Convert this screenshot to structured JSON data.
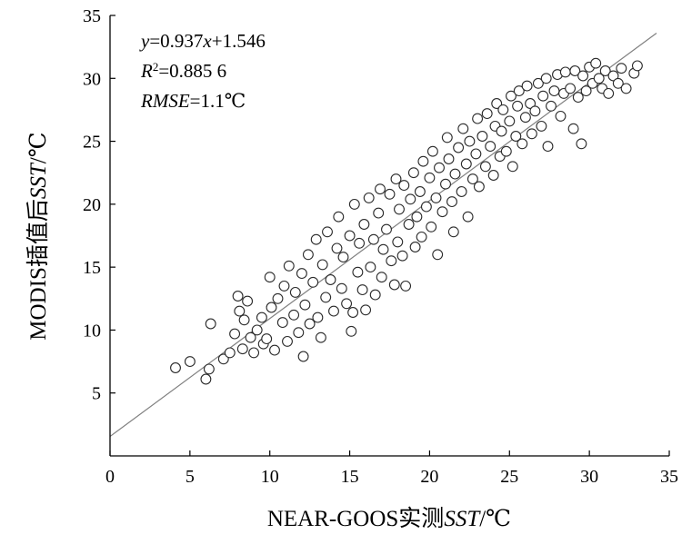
{
  "chart_data": {
    "type": "scatter",
    "title": "",
    "xlabel_parts": [
      {
        "text": "NEAR-GOOS实测",
        "italic": false
      },
      {
        "text": "SST",
        "italic": true
      },
      {
        "text": "/℃",
        "italic": false
      }
    ],
    "ylabel_parts": [
      {
        "text": "MODIS插值后",
        "italic": false
      },
      {
        "text": "SST",
        "italic": true
      },
      {
        "text": "/℃",
        "italic": false
      }
    ],
    "xlim": [
      0,
      35
    ],
    "ylim": [
      0,
      35
    ],
    "xticks": [
      0,
      5,
      10,
      15,
      20,
      25,
      30,
      35
    ],
    "yticks": [
      5,
      10,
      15,
      20,
      25,
      30,
      35
    ],
    "grid": false,
    "legend": "none",
    "colors": {
      "marker_edge": "#2b2b2b",
      "marker_fill": "#ffffff",
      "fit_line": "#808080",
      "axis": "#000000"
    },
    "annotations": [
      [
        {
          "text": "y",
          "italic": true
        },
        {
          "text": "=0.937",
          "italic": false
        },
        {
          "text": "x",
          "italic": true
        },
        {
          "text": "+1.546",
          "italic": false
        }
      ],
      [
        {
          "text": "R",
          "italic": true
        },
        {
          "text": "2",
          "italic": false,
          "superscript": true
        },
        {
          "text": "=0.885 6",
          "italic": false
        }
      ],
      [
        {
          "text": "RMSE",
          "italic": true
        },
        {
          "text": "=1.1℃",
          "italic": false
        }
      ]
    ],
    "fit_line": {
      "slope": 0.937,
      "intercept": 1.546,
      "x_range": [
        0,
        34.2
      ]
    },
    "series": [
      {
        "marker": "open-circle",
        "points": [
          [
            4.1,
            7.0
          ],
          [
            5.0,
            7.5
          ],
          [
            6.0,
            6.1
          ],
          [
            6.2,
            6.9
          ],
          [
            6.3,
            10.5
          ],
          [
            7.1,
            7.7
          ],
          [
            7.5,
            8.2
          ],
          [
            7.8,
            9.7
          ],
          [
            8.0,
            12.7
          ],
          [
            8.1,
            11.5
          ],
          [
            8.3,
            8.5
          ],
          [
            8.4,
            10.8
          ],
          [
            8.6,
            12.3
          ],
          [
            8.8,
            9.4
          ],
          [
            9.0,
            8.2
          ],
          [
            9.2,
            10.0
          ],
          [
            9.5,
            11.0
          ],
          [
            9.6,
            8.9
          ],
          [
            9.8,
            9.3
          ],
          [
            10.0,
            14.2
          ],
          [
            10.1,
            11.8
          ],
          [
            10.3,
            8.4
          ],
          [
            10.5,
            12.5
          ],
          [
            10.8,
            10.6
          ],
          [
            10.9,
            13.5
          ],
          [
            11.1,
            9.1
          ],
          [
            11.2,
            15.1
          ],
          [
            11.5,
            11.2
          ],
          [
            11.6,
            13.0
          ],
          [
            11.8,
            9.8
          ],
          [
            12.0,
            14.5
          ],
          [
            12.1,
            7.9
          ],
          [
            12.2,
            12.0
          ],
          [
            12.4,
            16.0
          ],
          [
            12.5,
            10.5
          ],
          [
            12.7,
            13.8
          ],
          [
            12.9,
            17.2
          ],
          [
            13.0,
            11.0
          ],
          [
            13.2,
            9.4
          ],
          [
            13.3,
            15.2
          ],
          [
            13.5,
            12.6
          ],
          [
            13.6,
            17.8
          ],
          [
            13.8,
            14.0
          ],
          [
            14.0,
            11.5
          ],
          [
            14.2,
            16.5
          ],
          [
            14.3,
            19.0
          ],
          [
            14.5,
            13.3
          ],
          [
            14.6,
            15.8
          ],
          [
            14.8,
            12.1
          ],
          [
            15.0,
            17.5
          ],
          [
            15.1,
            9.9
          ],
          [
            15.2,
            11.4
          ],
          [
            15.3,
            20.0
          ],
          [
            15.5,
            14.6
          ],
          [
            15.6,
            16.9
          ],
          [
            15.8,
            13.2
          ],
          [
            15.9,
            18.4
          ],
          [
            16.0,
            11.6
          ],
          [
            16.2,
            20.5
          ],
          [
            16.3,
            15.0
          ],
          [
            16.5,
            17.2
          ],
          [
            16.6,
            12.8
          ],
          [
            16.8,
            19.3
          ],
          [
            16.9,
            21.2
          ],
          [
            17.0,
            14.2
          ],
          [
            17.1,
            16.4
          ],
          [
            17.3,
            18.0
          ],
          [
            17.5,
            20.8
          ],
          [
            17.6,
            15.5
          ],
          [
            17.8,
            13.6
          ],
          [
            17.9,
            22.0
          ],
          [
            18.0,
            17.0
          ],
          [
            18.1,
            19.6
          ],
          [
            18.3,
            15.9
          ],
          [
            18.4,
            21.5
          ],
          [
            18.5,
            13.5
          ],
          [
            18.7,
            18.4
          ],
          [
            18.8,
            20.4
          ],
          [
            19.0,
            22.5
          ],
          [
            19.1,
            16.6
          ],
          [
            19.2,
            19.0
          ],
          [
            19.4,
            21.0
          ],
          [
            19.5,
            17.4
          ],
          [
            19.6,
            23.4
          ],
          [
            19.8,
            19.8
          ],
          [
            20.0,
            22.1
          ],
          [
            20.1,
            18.2
          ],
          [
            20.2,
            24.2
          ],
          [
            20.4,
            20.5
          ],
          [
            20.5,
            16.0
          ],
          [
            20.6,
            22.9
          ],
          [
            20.8,
            19.4
          ],
          [
            21.0,
            21.6
          ],
          [
            21.1,
            25.3
          ],
          [
            21.2,
            23.6
          ],
          [
            21.4,
            20.2
          ],
          [
            21.5,
            17.8
          ],
          [
            21.6,
            22.4
          ],
          [
            21.8,
            24.5
          ],
          [
            22.0,
            21.0
          ],
          [
            22.1,
            26.0
          ],
          [
            22.3,
            23.2
          ],
          [
            22.4,
            19.0
          ],
          [
            22.5,
            25.0
          ],
          [
            22.7,
            22.0
          ],
          [
            22.9,
            24.0
          ],
          [
            23.0,
            26.8
          ],
          [
            23.1,
            21.4
          ],
          [
            23.3,
            25.4
          ],
          [
            23.5,
            23.0
          ],
          [
            23.6,
            27.2
          ],
          [
            23.8,
            24.6
          ],
          [
            24.0,
            22.3
          ],
          [
            24.1,
            26.2
          ],
          [
            24.2,
            28.0
          ],
          [
            24.4,
            23.8
          ],
          [
            24.5,
            25.8
          ],
          [
            24.6,
            27.5
          ],
          [
            24.8,
            24.2
          ],
          [
            25.0,
            26.6
          ],
          [
            25.1,
            28.6
          ],
          [
            25.2,
            23.0
          ],
          [
            25.4,
            25.4
          ],
          [
            25.5,
            27.8
          ],
          [
            25.6,
            29.0
          ],
          [
            25.8,
            24.8
          ],
          [
            26.0,
            26.9
          ],
          [
            26.1,
            29.4
          ],
          [
            26.3,
            28.0
          ],
          [
            26.4,
            25.6
          ],
          [
            26.6,
            27.4
          ],
          [
            26.8,
            29.6
          ],
          [
            27.0,
            26.2
          ],
          [
            27.1,
            28.6
          ],
          [
            27.3,
            30.0
          ],
          [
            27.4,
            24.6
          ],
          [
            27.6,
            27.8
          ],
          [
            27.8,
            29.0
          ],
          [
            28.0,
            30.3
          ],
          [
            28.2,
            27.0
          ],
          [
            28.4,
            28.8
          ],
          [
            28.5,
            30.5
          ],
          [
            28.8,
            29.2
          ],
          [
            29.0,
            26.0
          ],
          [
            29.1,
            30.6
          ],
          [
            29.3,
            28.5
          ],
          [
            29.5,
            24.8
          ],
          [
            29.6,
            30.2
          ],
          [
            29.8,
            29.0
          ],
          [
            30.0,
            30.9
          ],
          [
            30.2,
            29.6
          ],
          [
            30.4,
            31.2
          ],
          [
            30.6,
            30.0
          ],
          [
            30.8,
            29.2
          ],
          [
            31.0,
            30.6
          ],
          [
            31.2,
            28.8
          ],
          [
            31.5,
            30.2
          ],
          [
            31.8,
            29.6
          ],
          [
            32.0,
            30.8
          ],
          [
            32.3,
            29.2
          ],
          [
            32.8,
            30.4
          ],
          [
            33.0,
            31.0
          ]
        ]
      }
    ]
  }
}
